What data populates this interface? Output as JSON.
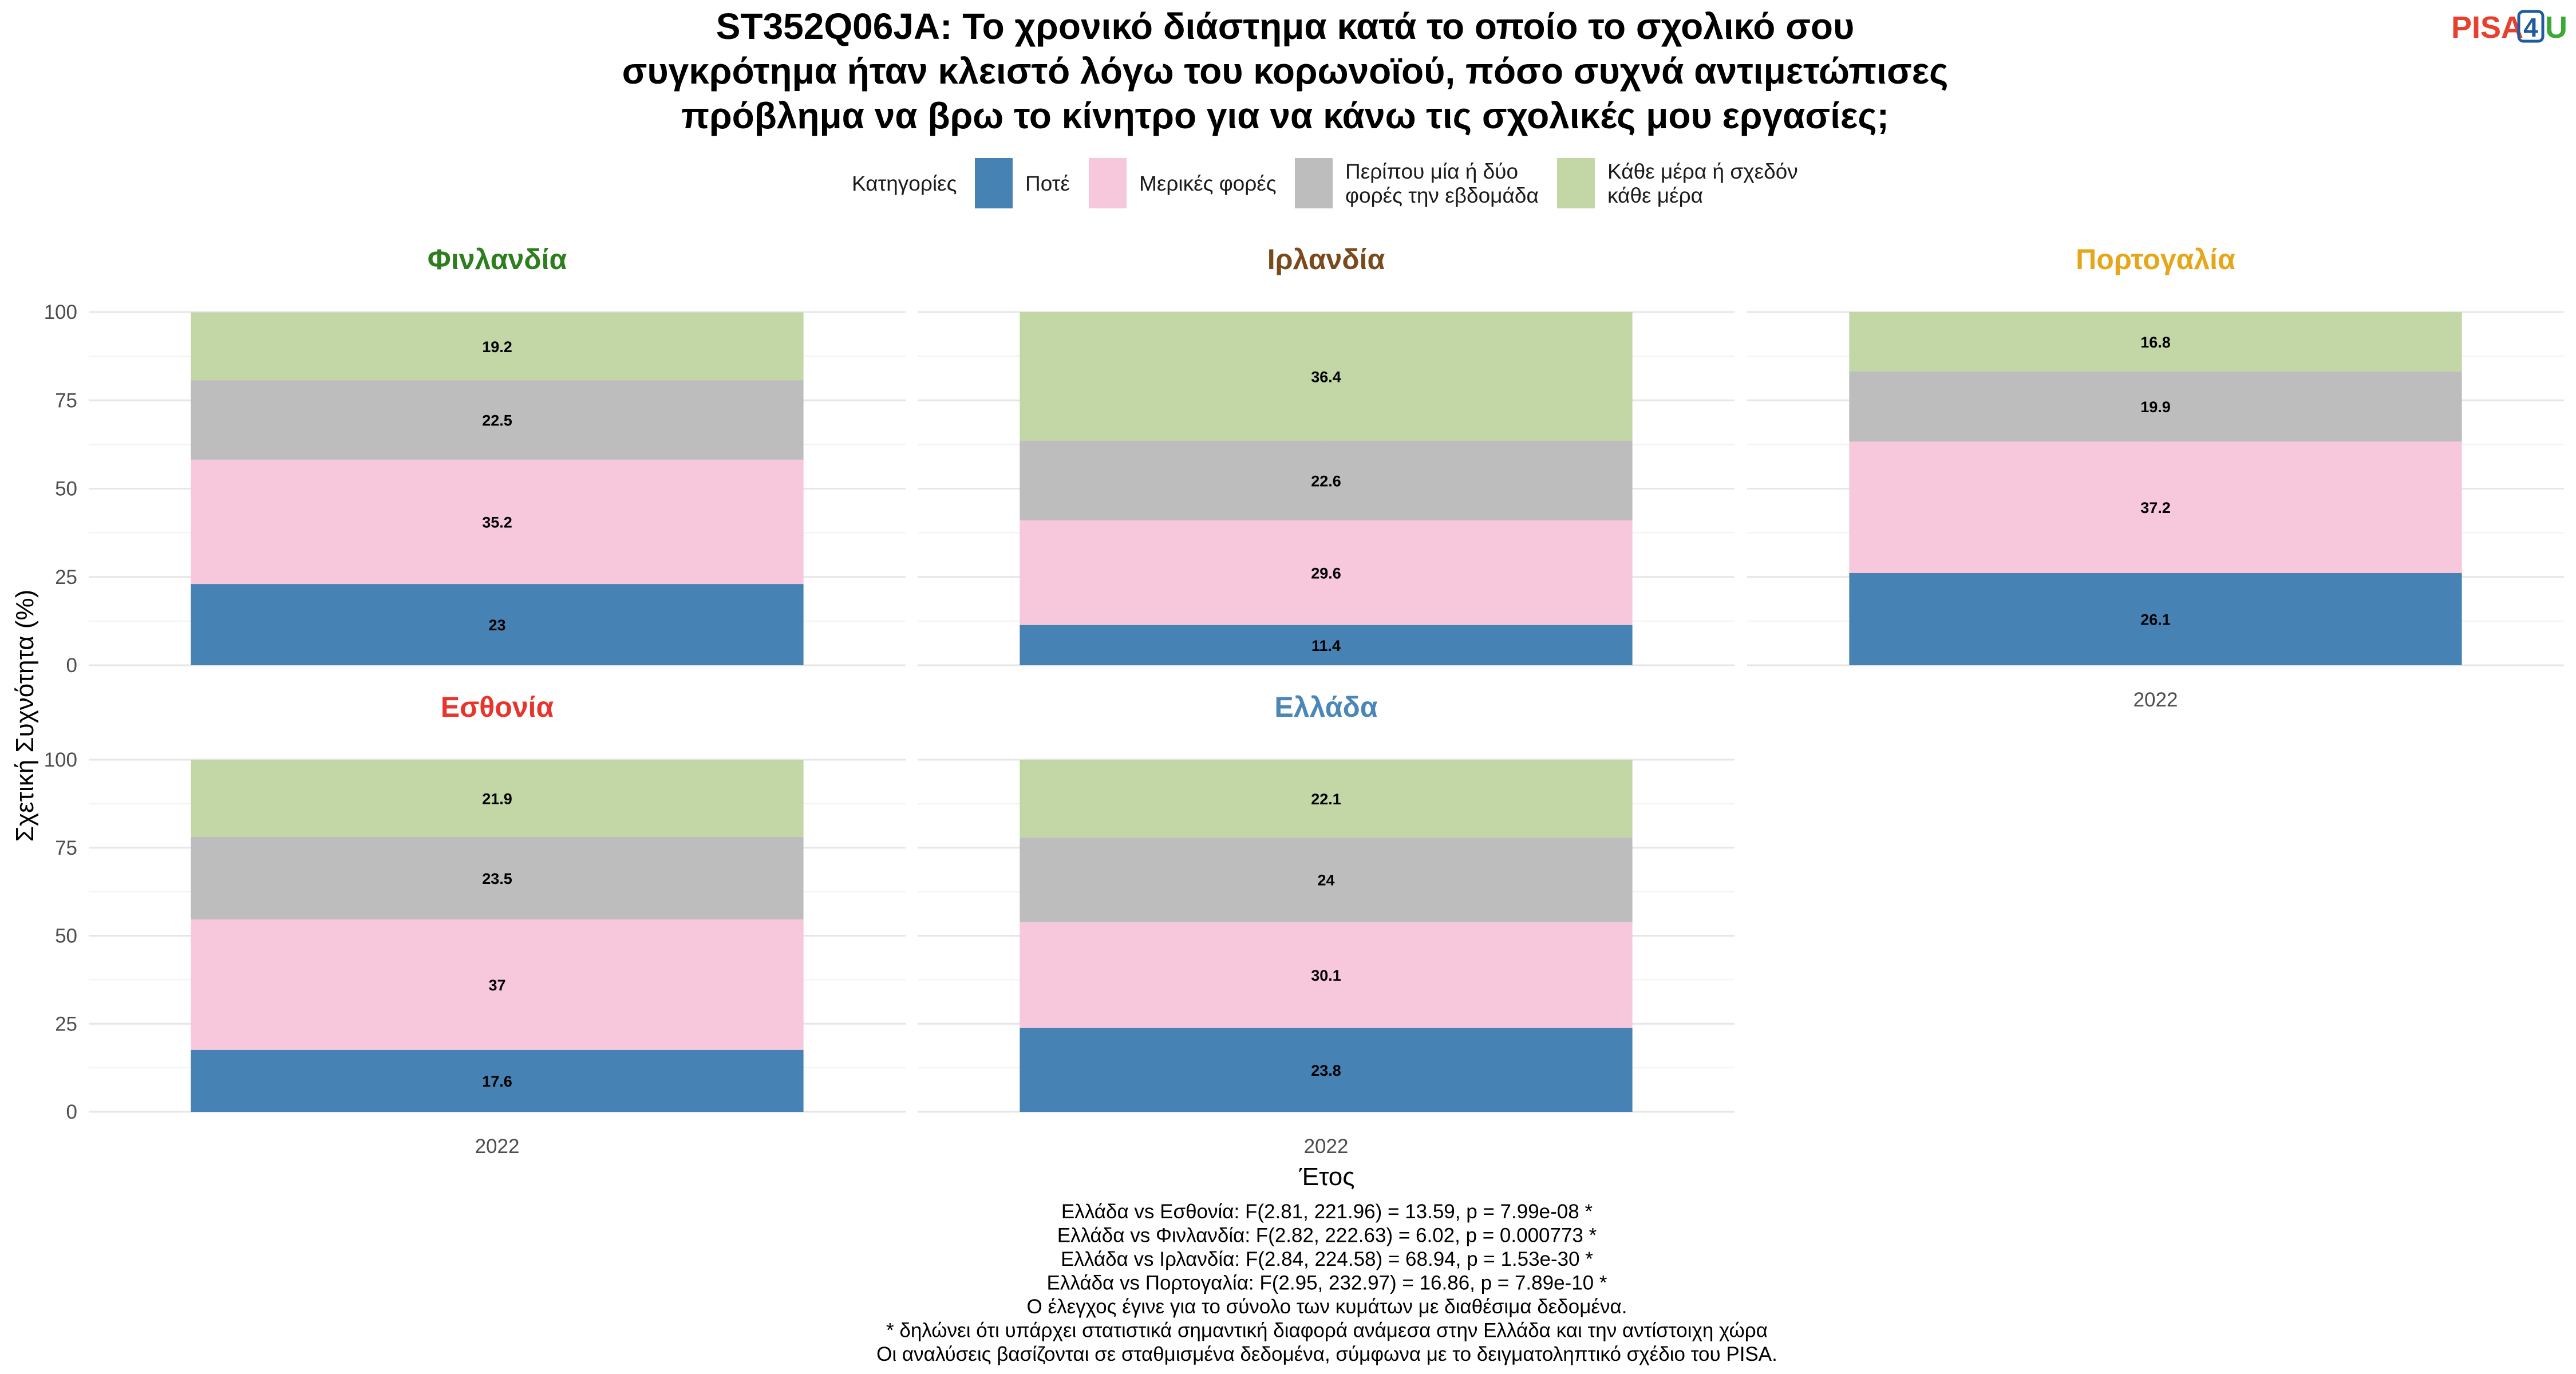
{
  "logo": {
    "text_pisa": "PISA",
    "text_four": "4",
    "text_u": "U",
    "color_pisa": "#e8402e",
    "color_four": "#1f5b9e",
    "color_u": "#3aaa35"
  },
  "chart_data": {
    "type": "bar",
    "stacked": true,
    "title_lines": [
      "ST352Q06JA: Το χρονικό διάστημα κατά το οποίο το σχολικό σου",
      "συγκρότημα ήταν κλειστό λόγω του κορωνοϊού, πόσο συχνά αντιμετώπισες",
      "πρόβλημα να βρω το κίνητρο για να κάνω τις σχολικές μου εργασίες;"
    ],
    "legend": {
      "title": "Κατηγορίες",
      "placement": "top",
      "items": [
        {
          "lines": [
            "Ποτέ"
          ],
          "color": "#4682b4"
        },
        {
          "lines": [
            "Μερικές φορές"
          ],
          "color": "#f7c7dc"
        },
        {
          "lines": [
            "Περίπου μία ή δύο",
            "φορές την εβδομάδα"
          ],
          "color": "#bdbdbd"
        },
        {
          "lines": [
            "Κάθε μέρα ή σχεδόν",
            "κάθε μέρα"
          ],
          "color": "#c2d6a6"
        }
      ]
    },
    "xlabel": "Έτος",
    "ylabel": "Σχετική Συχνότητα (%)",
    "ylim": [
      0,
      100
    ],
    "yticks": [
      "0",
      "25",
      "50",
      "75",
      "100"
    ],
    "categories": [
      "2022"
    ],
    "grid": true,
    "panels": [
      {
        "name": "Φινλανδία",
        "color": "#2e7d1e",
        "values": [
          23,
          35.2,
          22.5,
          19.2
        ],
        "labels": [
          "23",
          "35.2",
          "22.5",
          "19.2"
        ]
      },
      {
        "name": "Ιρλανδία",
        "color": "#7a4a1c",
        "values": [
          11.4,
          29.6,
          22.6,
          36.4
        ],
        "labels": [
          "11.4",
          "29.6",
          "22.6",
          "36.4"
        ]
      },
      {
        "name": "Πορτογαλία",
        "color": "#e6a61a",
        "values": [
          26.1,
          37.2,
          19.9,
          16.8
        ],
        "labels": [
          "26.1",
          "37.2",
          "19.9",
          "16.8"
        ]
      },
      {
        "name": "Εσθονία",
        "color": "#e8342b",
        "values": [
          17.6,
          37,
          23.5,
          21.9
        ],
        "labels": [
          "17.6",
          "37",
          "23.5",
          "21.9"
        ]
      },
      {
        "name": "Ελλάδα",
        "color": "#4a86b8",
        "values": [
          23.8,
          30.1,
          24,
          22.1
        ],
        "labels": [
          "23.8",
          "30.1",
          "24",
          "22.1"
        ]
      }
    ],
    "caption_lines": [
      "Ελλάδα vs Εσθονία: F(2.81, 221.96) = 13.59, p = 7.99e-08 *",
      "Ελλάδα vs Φινλανδία: F(2.82, 222.63) = 6.02, p = 0.000773 *",
      "Ελλάδα vs Ιρλανδία: F(2.84, 224.58) = 68.94, p = 1.53e-30 *",
      "Ελλάδα vs Πορτογαλία: F(2.95, 232.97) = 16.86, p = 7.89e-10 *",
      "Ο έλεγχος έγινε για το σύνολο των κυμάτων με διαθέσιμα δεδομένα.",
      "* δηλώνει ότι υπάρχει στατιστικά σημαντική διαφορά ανάμεσα στην Ελλάδα και την αντίστοιχη χώρα",
      "Οι αναλύσεις βασίζονται σε σταθμισμένα δεδομένα, σύμφωνα με το δειγματοληπτικό σχέδιο του PISA."
    ]
  }
}
